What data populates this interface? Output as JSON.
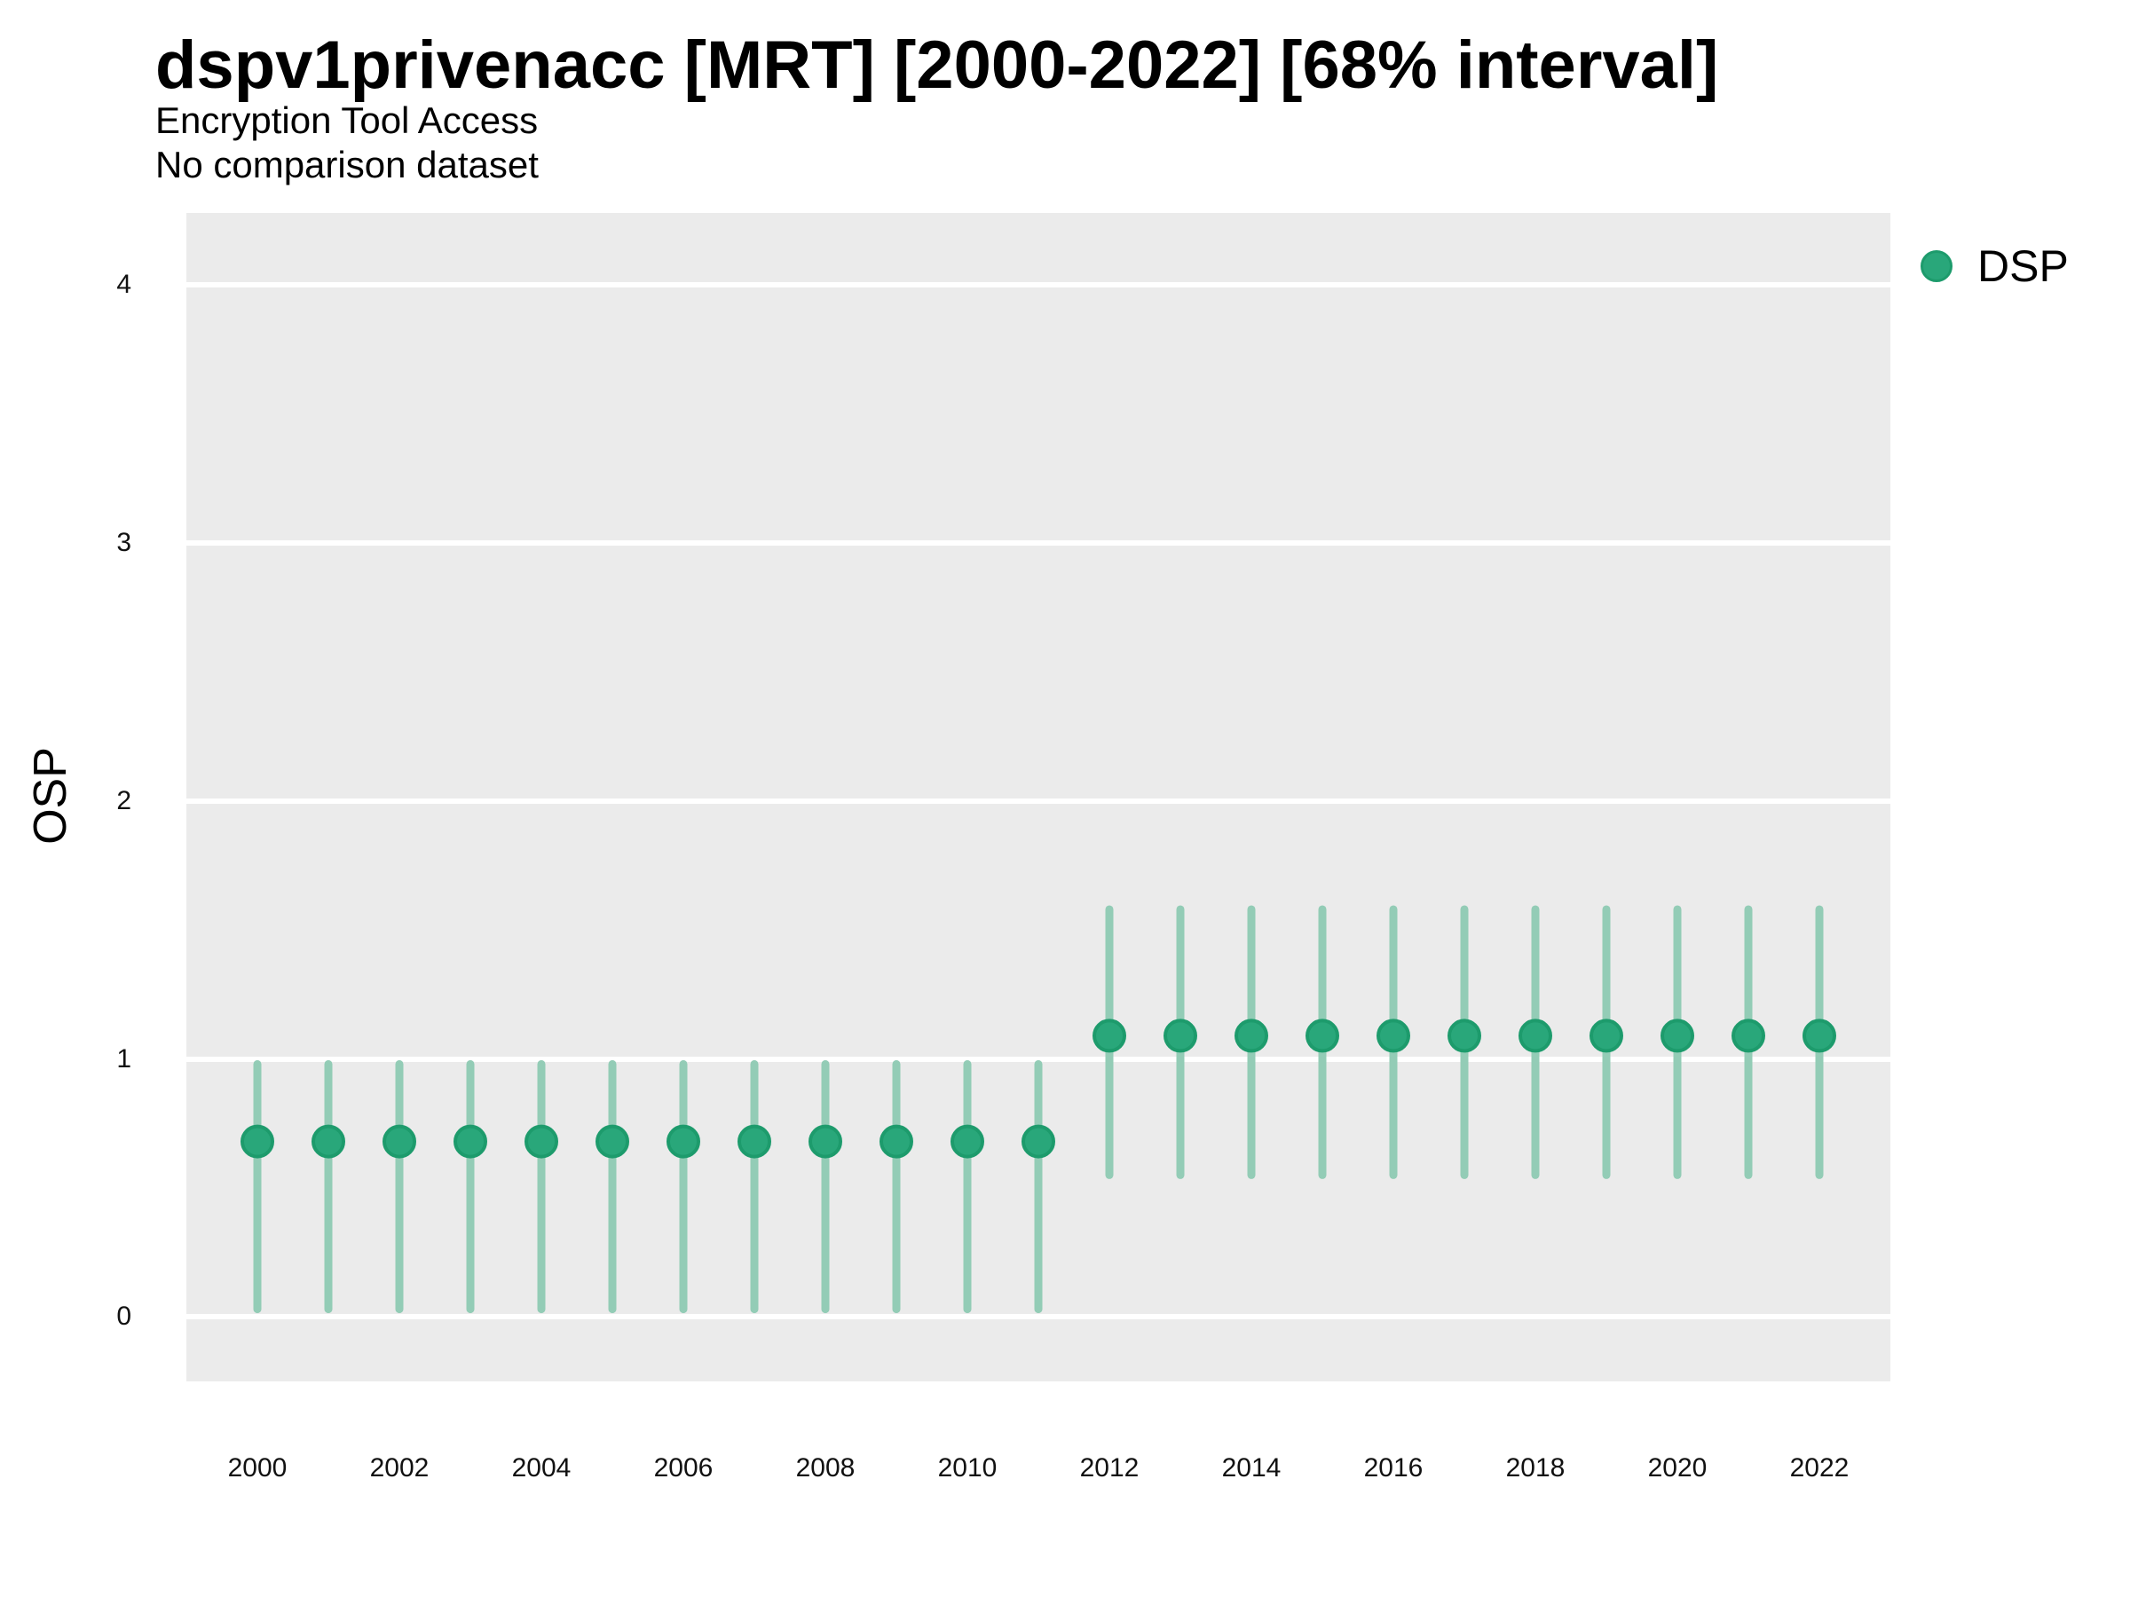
{
  "title": "dspv1privenacc [MRT] [2000-2022] [68% interval]",
  "subtitle_line1": "Encryption Tool Access",
  "subtitle_line2": "No comparison dataset",
  "y_axis_title": "OSP",
  "legend": {
    "label": "DSP",
    "color": "#29a77a",
    "outline": "#1d9b6c"
  },
  "chart_data": {
    "type": "scatter",
    "subtype": "pointrange",
    "title": "dspv1privenacc [MRT] [2000-2022] [68% interval]",
    "subtitle": [
      "Encryption Tool Access",
      "No comparison dataset"
    ],
    "xlabel": "",
    "ylabel": "OSP",
    "legend_position": "right",
    "legend_entries": [
      "DSP"
    ],
    "grid": "horizontal-major-only",
    "x": [
      2000,
      2001,
      2002,
      2003,
      2004,
      2005,
      2006,
      2007,
      2008,
      2009,
      2010,
      2011,
      2012,
      2013,
      2014,
      2015,
      2016,
      2017,
      2018,
      2019,
      2020,
      2021,
      2022
    ],
    "series": [
      {
        "name": "DSP",
        "values": [
          0.68,
          0.68,
          0.68,
          0.68,
          0.68,
          0.68,
          0.68,
          0.68,
          0.68,
          0.68,
          0.68,
          0.68,
          1.09,
          1.09,
          1.09,
          1.09,
          1.09,
          1.09,
          1.09,
          1.09,
          1.09,
          1.09,
          1.09
        ],
        "lower": [
          0.03,
          0.03,
          0.03,
          0.03,
          0.03,
          0.03,
          0.03,
          0.03,
          0.03,
          0.03,
          0.03,
          0.03,
          0.55,
          0.55,
          0.55,
          0.55,
          0.55,
          0.55,
          0.55,
          0.55,
          0.55,
          0.55,
          0.55
        ],
        "upper": [
          0.98,
          0.98,
          0.98,
          0.98,
          0.98,
          0.98,
          0.98,
          0.98,
          0.98,
          0.98,
          0.98,
          0.98,
          1.58,
          1.58,
          1.58,
          1.58,
          1.58,
          1.58,
          1.58,
          1.58,
          1.58,
          1.58,
          1.58
        ]
      }
    ],
    "interval_label": "68% interval",
    "y_ticks": [
      0,
      1,
      2,
      3,
      4
    ],
    "x_tick_years": [
      2000,
      2002,
      2004,
      2006,
      2008,
      2010,
      2012,
      2014,
      2016,
      2018,
      2020,
      2022
    ],
    "x_tick_labels": [
      "2000",
      "2002",
      "2004",
      "2006",
      "2008",
      "2010",
      "2012",
      "2014",
      "2016",
      "2018",
      "2020",
      "2022"
    ],
    "ylim": [
      -0.25,
      4.28
    ],
    "xlim": [
      1999,
      2023
    ],
    "colors": {
      "point": "#29a77a",
      "point_stroke": "#1d9b6c",
      "interval": "#93ccb6",
      "panel_bg": "#ebebeb",
      "grid": "#ffffff",
      "text": "#000000"
    }
  }
}
